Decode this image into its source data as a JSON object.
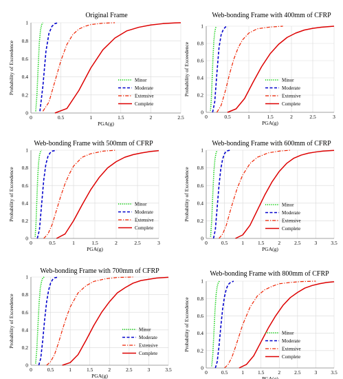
{
  "colors": {
    "minor": "#00cc00",
    "moderate": "#0000cc",
    "extensive": "#ee2200",
    "complete": "#dd0000",
    "grid": "#d9d9d9",
    "axis": "#808080"
  },
  "legend_placement": "bottom-right",
  "chart_data": [
    {
      "type": "line",
      "title": "Original Frame",
      "xlabel": "PGA(g)",
      "ylabel": "Probability of Exceedence",
      "xlim": [
        0,
        2.5
      ],
      "ylim": [
        0,
        1
      ],
      "xticks": [
        "0",
        "0.5",
        "1",
        "1.5",
        "2",
        "2.5"
      ],
      "yticks": [
        "0",
        "0.2",
        "0.4",
        "0.6",
        "0.8",
        "1"
      ],
      "grid": true,
      "series": [
        {
          "name": "Minor",
          "style": "dotted",
          "color": "#00cc00",
          "x": [
            0.08,
            0.1,
            0.12,
            0.14,
            0.16,
            0.18,
            0.2
          ],
          "y": [
            0.02,
            0.2,
            0.5,
            0.78,
            0.92,
            0.98,
            1.0
          ]
        },
        {
          "name": "Moderate",
          "style": "dashed",
          "color": "#0000cc",
          "x": [
            0.15,
            0.2,
            0.25,
            0.3,
            0.35,
            0.4,
            0.45
          ],
          "y": [
            0.02,
            0.3,
            0.68,
            0.88,
            0.96,
            0.99,
            1.0
          ]
        },
        {
          "name": "Extensive",
          "style": "dashdot",
          "color": "#ee2200",
          "x": [
            0.2,
            0.3,
            0.4,
            0.5,
            0.6,
            0.7,
            0.8,
            0.9,
            1.0,
            1.2,
            1.4
          ],
          "y": [
            0.02,
            0.12,
            0.35,
            0.58,
            0.76,
            0.87,
            0.93,
            0.96,
            0.98,
            0.995,
            1.0
          ]
        },
        {
          "name": "Complete",
          "style": "solid",
          "color": "#dd0000",
          "x": [
            0.4,
            0.6,
            0.8,
            1.0,
            1.2,
            1.4,
            1.6,
            1.8,
            2.0,
            2.2,
            2.4,
            2.5
          ],
          "y": [
            0.0,
            0.05,
            0.25,
            0.5,
            0.7,
            0.83,
            0.91,
            0.95,
            0.975,
            0.99,
            0.998,
            1.0
          ]
        }
      ]
    },
    {
      "type": "line",
      "title": "Web-bonding Frame with 400mm of CFRP",
      "xlabel": "PGA(g)",
      "ylabel": "Probability of Exceedence",
      "xlim": [
        0,
        3
      ],
      "ylim": [
        0,
        1
      ],
      "xticks": [
        "0",
        "0.5",
        "1",
        "1.5",
        "2",
        "2.5",
        "3"
      ],
      "yticks": [
        "0",
        "0.2",
        "0.4",
        "0.6",
        "0.8",
        "1"
      ],
      "grid": true,
      "series": [
        {
          "name": "Minor",
          "style": "dotted",
          "color": "#00cc00",
          "x": [
            0.1,
            0.12,
            0.14,
            0.16,
            0.18,
            0.2,
            0.22,
            0.24
          ],
          "y": [
            0.02,
            0.15,
            0.4,
            0.65,
            0.83,
            0.93,
            0.98,
            1.0
          ]
        },
        {
          "name": "Moderate",
          "style": "dashed",
          "color": "#0000cc",
          "x": [
            0.15,
            0.2,
            0.25,
            0.3,
            0.35,
            0.4,
            0.45,
            0.5
          ],
          "y": [
            0.0,
            0.12,
            0.45,
            0.75,
            0.9,
            0.96,
            0.99,
            1.0
          ]
        },
        {
          "name": "Extensive",
          "style": "dashdot",
          "color": "#ee2200",
          "x": [
            0.25,
            0.35,
            0.45,
            0.55,
            0.65,
            0.75,
            0.85,
            1.0,
            1.2,
            1.5,
            1.8
          ],
          "y": [
            0.0,
            0.08,
            0.25,
            0.45,
            0.62,
            0.75,
            0.84,
            0.92,
            0.97,
            0.99,
            1.0
          ]
        },
        {
          "name": "Complete",
          "style": "solid",
          "color": "#dd0000",
          "x": [
            0.5,
            0.7,
            0.9,
            1.1,
            1.3,
            1.5,
            1.7,
            1.9,
            2.1,
            2.3,
            2.5,
            2.7,
            2.9,
            3.0
          ],
          "y": [
            0.0,
            0.04,
            0.16,
            0.35,
            0.53,
            0.68,
            0.79,
            0.87,
            0.92,
            0.955,
            0.975,
            0.988,
            0.996,
            1.0
          ]
        }
      ]
    },
    {
      "type": "line",
      "title": "Web-bonding Frame with 500mm of CFRP",
      "xlabel": "PGA(g)",
      "ylabel": "Probability of Exceedence",
      "xlim": [
        0,
        3
      ],
      "ylim": [
        0,
        1
      ],
      "xticks": [
        "0",
        "0.5",
        "1",
        "1.5",
        "2",
        "2.5",
        "3"
      ],
      "yticks": [
        "0",
        "0.2",
        "0.4",
        "0.6",
        "0.8",
        "1"
      ],
      "grid": true,
      "series": [
        {
          "name": "Minor",
          "style": "dotted",
          "color": "#00cc00",
          "x": [
            0.1,
            0.12,
            0.14,
            0.16,
            0.18,
            0.2,
            0.22,
            0.25
          ],
          "y": [
            0.02,
            0.18,
            0.45,
            0.7,
            0.86,
            0.94,
            0.98,
            1.0
          ]
        },
        {
          "name": "Moderate",
          "style": "dashed",
          "color": "#0000cc",
          "x": [
            0.15,
            0.2,
            0.25,
            0.3,
            0.35,
            0.4,
            0.45,
            0.5,
            0.6
          ],
          "y": [
            0.0,
            0.1,
            0.38,
            0.66,
            0.84,
            0.93,
            0.97,
            0.99,
            1.0
          ]
        },
        {
          "name": "Extensive",
          "style": "dashdot",
          "color": "#ee2200",
          "x": [
            0.3,
            0.4,
            0.5,
            0.6,
            0.7,
            0.8,
            0.9,
            1.0,
            1.2,
            1.4,
            1.7,
            2.0
          ],
          "y": [
            0.0,
            0.05,
            0.16,
            0.32,
            0.48,
            0.62,
            0.73,
            0.82,
            0.92,
            0.96,
            0.99,
            1.0
          ]
        },
        {
          "name": "Complete",
          "style": "solid",
          "color": "#dd0000",
          "x": [
            0.6,
            0.8,
            1.0,
            1.2,
            1.4,
            1.6,
            1.8,
            2.0,
            2.2,
            2.4,
            2.6,
            2.8,
            3.0
          ],
          "y": [
            0.0,
            0.05,
            0.2,
            0.38,
            0.55,
            0.69,
            0.8,
            0.87,
            0.92,
            0.95,
            0.97,
            0.985,
            0.995
          ]
        }
      ]
    },
    {
      "type": "line",
      "title": "Web-bonding Frame with 600mm of CFRP",
      "xlabel": "PGA(g)",
      "ylabel": "Probability of Exceedence",
      "xlim": [
        0,
        3.5
      ],
      "ylim": [
        0,
        1
      ],
      "xticks": [
        "0",
        "0.5",
        "1",
        "1.5",
        "2",
        "2.5",
        "3",
        "3.5"
      ],
      "yticks": [
        "0",
        "0.2",
        "0.4",
        "0.6",
        "0.8",
        "1"
      ],
      "grid": true,
      "series": [
        {
          "name": "Minor",
          "style": "dotted",
          "color": "#00cc00",
          "x": [
            0.12,
            0.15,
            0.18,
            0.21,
            0.24,
            0.27,
            0.3
          ],
          "y": [
            0.02,
            0.2,
            0.5,
            0.76,
            0.9,
            0.97,
            1.0
          ]
        },
        {
          "name": "Moderate",
          "style": "dashed",
          "color": "#0000cc",
          "x": [
            0.2,
            0.25,
            0.3,
            0.35,
            0.4,
            0.45,
            0.5,
            0.55,
            0.65
          ],
          "y": [
            0.0,
            0.1,
            0.35,
            0.6,
            0.79,
            0.9,
            0.96,
            0.99,
            1.0
          ]
        },
        {
          "name": "Extensive",
          "style": "dashdot",
          "color": "#ee2200",
          "x": [
            0.35,
            0.45,
            0.55,
            0.65,
            0.75,
            0.85,
            1.0,
            1.2,
            1.4,
            1.7,
            2.0,
            2.3
          ],
          "y": [
            0.0,
            0.05,
            0.15,
            0.3,
            0.44,
            0.57,
            0.72,
            0.85,
            0.92,
            0.97,
            0.99,
            1.0
          ]
        },
        {
          "name": "Complete",
          "style": "solid",
          "color": "#dd0000",
          "x": [
            0.8,
            1.0,
            1.2,
            1.4,
            1.6,
            1.8,
            2.0,
            2.2,
            2.4,
            2.6,
            2.8,
            3.0,
            3.2,
            3.5
          ],
          "y": [
            0.0,
            0.04,
            0.15,
            0.32,
            0.49,
            0.64,
            0.76,
            0.85,
            0.91,
            0.945,
            0.967,
            0.98,
            0.99,
            0.998
          ]
        }
      ]
    },
    {
      "type": "line",
      "title": "Web-bonding Frame with 700mm of CFRP",
      "xlabel": "PGA(g)",
      "ylabel": "Probability of Exceedence",
      "xlim": [
        0,
        3.5
      ],
      "ylim": [
        0,
        1
      ],
      "xticks": [
        "0",
        "0.5",
        "1",
        "1.5",
        "2",
        "2.5",
        "3",
        "3.5"
      ],
      "yticks": [
        "0",
        "0.2",
        "0.4",
        "0.6",
        "0.8",
        "1"
      ],
      "grid": true,
      "series": [
        {
          "name": "Minor",
          "style": "dotted",
          "color": "#00cc00",
          "x": [
            0.12,
            0.15,
            0.18,
            0.21,
            0.24,
            0.27,
            0.3,
            0.34
          ],
          "y": [
            0.02,
            0.18,
            0.46,
            0.72,
            0.88,
            0.95,
            0.99,
            1.0
          ]
        },
        {
          "name": "Moderate",
          "style": "dashed",
          "color": "#0000cc",
          "x": [
            0.2,
            0.25,
            0.3,
            0.35,
            0.4,
            0.45,
            0.5,
            0.55,
            0.6,
            0.7
          ],
          "y": [
            0.0,
            0.08,
            0.28,
            0.52,
            0.72,
            0.85,
            0.93,
            0.97,
            0.99,
            1.0
          ]
        },
        {
          "name": "Extensive",
          "style": "dashdot",
          "color": "#ee2200",
          "x": [
            0.4,
            0.5,
            0.6,
            0.7,
            0.8,
            0.9,
            1.0,
            1.2,
            1.4,
            1.6,
            1.9,
            2.2,
            2.6
          ],
          "y": [
            0.0,
            0.04,
            0.12,
            0.25,
            0.4,
            0.54,
            0.66,
            0.82,
            0.9,
            0.95,
            0.98,
            0.995,
            1.0
          ]
        },
        {
          "name": "Complete",
          "style": "solid",
          "color": "#dd0000",
          "x": [
            0.8,
            1.0,
            1.2,
            1.4,
            1.6,
            1.8,
            2.0,
            2.2,
            2.4,
            2.6,
            2.8,
            3.0,
            3.2,
            3.5
          ],
          "y": [
            0.0,
            0.03,
            0.12,
            0.28,
            0.45,
            0.6,
            0.72,
            0.82,
            0.88,
            0.93,
            0.96,
            0.975,
            0.988,
            0.997
          ]
        }
      ]
    },
    {
      "type": "line",
      "title": "Web-bonding Frame with 800mm of CFRP",
      "xlabel": "PGA(g)",
      "ylabel": "Probability of Exceedence",
      "xlim": [
        0,
        3.5
      ],
      "ylim": [
        0,
        1
      ],
      "xticks": [
        "0",
        "0.5",
        "1",
        "1.5",
        "2",
        "2.5",
        "3",
        "3.5"
      ],
      "yticks": [
        "0",
        "0.2",
        "0.4",
        "0.6",
        "0.8",
        "1"
      ],
      "grid": true,
      "series": [
        {
          "name": "Minor",
          "style": "dotted",
          "color": "#00cc00",
          "x": [
            0.15,
            0.18,
            0.21,
            0.24,
            0.27,
            0.3,
            0.33,
            0.36
          ],
          "y": [
            0.02,
            0.15,
            0.4,
            0.66,
            0.84,
            0.94,
            0.98,
            1.0
          ]
        },
        {
          "name": "Moderate",
          "style": "dashed",
          "color": "#0000cc",
          "x": [
            0.25,
            0.3,
            0.35,
            0.4,
            0.45,
            0.5,
            0.55,
            0.6,
            0.65,
            0.75
          ],
          "y": [
            0.0,
            0.07,
            0.25,
            0.48,
            0.68,
            0.82,
            0.91,
            0.96,
            0.98,
            1.0
          ]
        },
        {
          "name": "Extensive",
          "style": "dashdot",
          "color": "#ee2200",
          "x": [
            0.5,
            0.6,
            0.7,
            0.8,
            0.9,
            1.0,
            1.2,
            1.4,
            1.6,
            1.8,
            2.0,
            2.3,
            2.6,
            3.0
          ],
          "y": [
            0.0,
            0.04,
            0.12,
            0.24,
            0.37,
            0.5,
            0.7,
            0.83,
            0.9,
            0.94,
            0.97,
            0.985,
            0.995,
            1.0
          ]
        },
        {
          "name": "Complete",
          "style": "solid",
          "color": "#dd0000",
          "x": [
            0.9,
            1.1,
            1.3,
            1.5,
            1.7,
            1.9,
            2.1,
            2.3,
            2.5,
            2.7,
            2.9,
            3.1,
            3.3,
            3.5
          ],
          "y": [
            0.0,
            0.04,
            0.14,
            0.3,
            0.46,
            0.6,
            0.72,
            0.81,
            0.87,
            0.92,
            0.95,
            0.97,
            0.985,
            0.993
          ]
        }
      ]
    }
  ]
}
